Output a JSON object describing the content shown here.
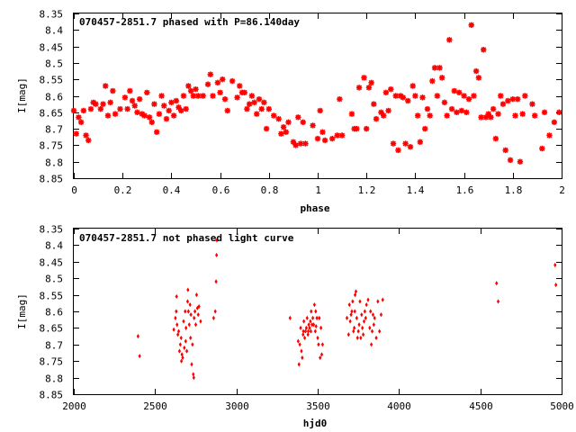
{
  "colors": {
    "marker": "#ff0000",
    "axis": "#000000",
    "background": "#ffffff"
  },
  "chart_data": [
    {
      "type": "scatter",
      "title": "070457-2851.7 phased with P=86.140day",
      "xlabel": "phase",
      "ylabel": "I[mag]",
      "xlim": [
        0,
        2
      ],
      "ylim": [
        8.85,
        8.35
      ],
      "y_inverted": true,
      "grid": false,
      "legend": "none",
      "marker": "asterisk",
      "xticks": [
        {
          "v": 0,
          "label": "0"
        },
        {
          "v": 0.2,
          "label": "0.2"
        },
        {
          "v": 0.4,
          "label": "0.4"
        },
        {
          "v": 0.6,
          "label": "0.6"
        },
        {
          "v": 0.8,
          "label": "0.8"
        },
        {
          "v": 1.0,
          "label": "1"
        },
        {
          "v": 1.2,
          "label": "1.2"
        },
        {
          "v": 1.4,
          "label": "1.4"
        },
        {
          "v": 1.6,
          "label": "1.6"
        },
        {
          "v": 1.8,
          "label": "1.8"
        },
        {
          "v": 2.0,
          "label": "2"
        }
      ],
      "yticks": [
        {
          "v": 8.35,
          "label": "8.35"
        },
        {
          "v": 8.4,
          "label": "8.4"
        },
        {
          "v": 8.45,
          "label": "8.45"
        },
        {
          "v": 8.5,
          "label": "8.5"
        },
        {
          "v": 8.55,
          "label": "8.55"
        },
        {
          "v": 8.6,
          "label": "8.6"
        },
        {
          "v": 8.65,
          "label": "8.65"
        },
        {
          "v": 8.7,
          "label": "8.7"
        },
        {
          "v": 8.75,
          "label": "8.75"
        },
        {
          "v": 8.8,
          "label": "8.8"
        },
        {
          "v": 8.85,
          "label": "8.85"
        }
      ],
      "points": [
        [
          0.0,
          8.645
        ],
        [
          0.01,
          8.715
        ],
        [
          0.02,
          8.665
        ],
        [
          0.03,
          8.68
        ],
        [
          0.04,
          8.645
        ],
        [
          0.05,
          8.72
        ],
        [
          0.06,
          8.735
        ],
        [
          0.07,
          8.64
        ],
        [
          0.08,
          8.62
        ],
        [
          0.09,
          8.625
        ],
        [
          0.11,
          8.64
        ],
        [
          0.12,
          8.625
        ],
        [
          0.13,
          8.57
        ],
        [
          0.14,
          8.66
        ],
        [
          0.15,
          8.62
        ],
        [
          0.16,
          8.585
        ],
        [
          0.17,
          8.655
        ],
        [
          0.19,
          8.64
        ],
        [
          0.21,
          8.605
        ],
        [
          0.22,
          8.64
        ],
        [
          0.23,
          8.585
        ],
        [
          0.24,
          8.615
        ],
        [
          0.25,
          8.63
        ],
        [
          0.26,
          8.65
        ],
        [
          0.27,
          8.61
        ],
        [
          0.28,
          8.655
        ],
        [
          0.29,
          8.66
        ],
        [
          0.3,
          8.59
        ],
        [
          0.31,
          8.665
        ],
        [
          0.32,
          8.68
        ],
        [
          0.33,
          8.625
        ],
        [
          0.34,
          8.71
        ],
        [
          0.35,
          8.655
        ],
        [
          0.36,
          8.6
        ],
        [
          0.37,
          8.63
        ],
        [
          0.38,
          8.67
        ],
        [
          0.39,
          8.645
        ],
        [
          0.4,
          8.62
        ],
        [
          0.41,
          8.66
        ],
        [
          0.42,
          8.615
        ],
        [
          0.43,
          8.635
        ],
        [
          0.44,
          8.645
        ],
        [
          0.45,
          8.6
        ],
        [
          0.46,
          8.64
        ],
        [
          0.47,
          8.57
        ],
        [
          0.48,
          8.585
        ],
        [
          0.49,
          8.6
        ],
        [
          0.5,
          8.58
        ],
        [
          0.51,
          8.6
        ],
        [
          0.53,
          8.6
        ],
        [
          0.55,
          8.565
        ],
        [
          0.56,
          8.535
        ],
        [
          0.57,
          8.6
        ],
        [
          0.59,
          8.56
        ],
        [
          0.6,
          8.59
        ],
        [
          0.61,
          8.55
        ],
        [
          0.62,
          8.61
        ],
        [
          0.63,
          8.645
        ],
        [
          0.65,
          8.555
        ],
        [
          0.67,
          8.605
        ],
        [
          0.68,
          8.57
        ],
        [
          0.69,
          8.59
        ],
        [
          0.7,
          8.59
        ],
        [
          0.71,
          8.64
        ],
        [
          0.72,
          8.625
        ],
        [
          0.73,
          8.6
        ],
        [
          0.74,
          8.62
        ],
        [
          0.75,
          8.655
        ],
        [
          0.76,
          8.61
        ],
        [
          0.77,
          8.64
        ],
        [
          0.78,
          8.62
        ],
        [
          0.79,
          8.7
        ],
        [
          0.8,
          8.64
        ],
        [
          0.82,
          8.66
        ],
        [
          0.84,
          8.67
        ],
        [
          0.85,
          8.715
        ],
        [
          0.86,
          8.695
        ],
        [
          0.87,
          8.71
        ],
        [
          0.88,
          8.68
        ],
        [
          0.9,
          8.74
        ],
        [
          0.91,
          8.75
        ],
        [
          0.92,
          8.665
        ],
        [
          0.93,
          8.745
        ],
        [
          0.94,
          8.68
        ],
        [
          0.95,
          8.745
        ],
        [
          0.98,
          8.69
        ],
        [
          1.0,
          8.73
        ],
        [
          1.01,
          8.645
        ],
        [
          1.02,
          8.71
        ],
        [
          1.03,
          8.735
        ],
        [
          1.06,
          8.73
        ],
        [
          1.08,
          8.72
        ],
        [
          1.09,
          8.61
        ],
        [
          1.1,
          8.72
        ],
        [
          1.14,
          8.655
        ],
        [
          1.15,
          8.7
        ],
        [
          1.16,
          8.7
        ],
        [
          1.17,
          8.575
        ],
        [
          1.19,
          8.545
        ],
        [
          1.2,
          8.7
        ],
        [
          1.21,
          8.575
        ],
        [
          1.22,
          8.56
        ],
        [
          1.23,
          8.625
        ],
        [
          1.24,
          8.67
        ],
        [
          1.26,
          8.65
        ],
        [
          1.27,
          8.66
        ],
        [
          1.28,
          8.59
        ],
        [
          1.29,
          8.645
        ],
        [
          1.3,
          8.58
        ],
        [
          1.31,
          8.745
        ],
        [
          1.32,
          8.6
        ],
        [
          1.33,
          8.765
        ],
        [
          1.34,
          8.6
        ],
        [
          1.35,
          8.605
        ],
        [
          1.36,
          8.745
        ],
        [
          1.37,
          8.615
        ],
        [
          1.38,
          8.755
        ],
        [
          1.39,
          8.57
        ],
        [
          1.4,
          8.6
        ],
        [
          1.41,
          8.66
        ],
        [
          1.42,
          8.74
        ],
        [
          1.43,
          8.605
        ],
        [
          1.44,
          8.7
        ],
        [
          1.45,
          8.64
        ],
        [
          1.46,
          8.66
        ],
        [
          1.47,
          8.555
        ],
        [
          1.48,
          8.515
        ],
        [
          1.49,
          8.6
        ],
        [
          1.5,
          8.515
        ],
        [
          1.51,
          8.545
        ],
        [
          1.52,
          8.62
        ],
        [
          1.53,
          8.66
        ],
        [
          1.54,
          8.43
        ],
        [
          1.55,
          8.64
        ],
        [
          1.56,
          8.585
        ],
        [
          1.57,
          8.65
        ],
        [
          1.58,
          8.59
        ],
        [
          1.59,
          8.645
        ],
        [
          1.6,
          8.6
        ],
        [
          1.61,
          8.65
        ],
        [
          1.62,
          8.61
        ],
        [
          1.63,
          8.385
        ],
        [
          1.64,
          8.6
        ],
        [
          1.65,
          8.525
        ],
        [
          1.66,
          8.545
        ],
        [
          1.67,
          8.665
        ],
        [
          1.68,
          8.46
        ],
        [
          1.69,
          8.665
        ],
        [
          1.7,
          8.655
        ],
        [
          1.71,
          8.665
        ],
        [
          1.72,
          8.64
        ],
        [
          1.73,
          8.73
        ],
        [
          1.74,
          8.655
        ],
        [
          1.75,
          8.6
        ],
        [
          1.76,
          8.625
        ],
        [
          1.77,
          8.765
        ],
        [
          1.78,
          8.615
        ],
        [
          1.79,
          8.795
        ],
        [
          1.8,
          8.61
        ],
        [
          1.81,
          8.66
        ],
        [
          1.82,
          8.61
        ],
        [
          1.83,
          8.8
        ],
        [
          1.84,
          8.655
        ],
        [
          1.85,
          8.6
        ],
        [
          1.88,
          8.625
        ],
        [
          1.89,
          8.66
        ],
        [
          1.92,
          8.76
        ],
        [
          1.93,
          8.65
        ],
        [
          1.95,
          8.72
        ],
        [
          1.97,
          8.68
        ],
        [
          1.99,
          8.65
        ]
      ]
    },
    {
      "type": "scatter",
      "title": "070457-2851.7 not phased light curve",
      "xlabel": "hjd0",
      "ylabel": "I[mag]",
      "xlim": [
        2000,
        5000
      ],
      "ylim": [
        8.85,
        8.35
      ],
      "y_inverted": true,
      "grid": false,
      "legend": "none",
      "marker": "diamond",
      "xticks": [
        {
          "v": 2000,
          "label": "2000"
        },
        {
          "v": 2500,
          "label": "2500"
        },
        {
          "v": 3000,
          "label": "3000"
        },
        {
          "v": 3500,
          "label": "3500"
        },
        {
          "v": 4000,
          "label": "4000"
        },
        {
          "v": 4500,
          "label": "4500"
        },
        {
          "v": 5000,
          "label": "5000"
        }
      ],
      "yticks": [
        {
          "v": 8.35,
          "label": "8.35"
        },
        {
          "v": 8.4,
          "label": "8.4"
        },
        {
          "v": 8.45,
          "label": "8.45"
        },
        {
          "v": 8.5,
          "label": "8.5"
        },
        {
          "v": 8.55,
          "label": "8.55"
        },
        {
          "v": 8.6,
          "label": "8.6"
        },
        {
          "v": 8.65,
          "label": "8.65"
        },
        {
          "v": 8.7,
          "label": "8.7"
        },
        {
          "v": 8.75,
          "label": "8.75"
        },
        {
          "v": 8.8,
          "label": "8.8"
        },
        {
          "v": 8.85,
          "label": "8.85"
        }
      ],
      "points": [
        [
          2395,
          8.675
        ],
        [
          2405,
          8.735
        ],
        [
          2615,
          8.655
        ],
        [
          2625,
          8.62
        ],
        [
          2630,
          8.6
        ],
        [
          2632,
          8.555
        ],
        [
          2635,
          8.64
        ],
        [
          2640,
          8.67
        ],
        [
          2645,
          8.66
        ],
        [
          2650,
          8.72
        ],
        [
          2655,
          8.7
        ],
        [
          2660,
          8.68
        ],
        [
          2662,
          8.75
        ],
        [
          2665,
          8.73
        ],
        [
          2670,
          8.74
        ],
        [
          2675,
          8.63
        ],
        [
          2680,
          8.71
        ],
        [
          2685,
          8.6
        ],
        [
          2688,
          8.69
        ],
        [
          2690,
          8.65
        ],
        [
          2695,
          8.72
        ],
        [
          2700,
          8.57
        ],
        [
          2702,
          8.535
        ],
        [
          2705,
          8.6
        ],
        [
          2710,
          8.64
        ],
        [
          2715,
          8.58
        ],
        [
          2718,
          8.68
        ],
        [
          2720,
          8.61
        ],
        [
          2725,
          8.76
        ],
        [
          2730,
          8.7
        ],
        [
          2735,
          8.79
        ],
        [
          2738,
          8.8
        ],
        [
          2740,
          8.62
        ],
        [
          2745,
          8.6
        ],
        [
          2750,
          8.64
        ],
        [
          2755,
          8.55
        ],
        [
          2760,
          8.59
        ],
        [
          2765,
          8.61
        ],
        [
          2770,
          8.585
        ],
        [
          2780,
          8.63
        ],
        [
          2860,
          8.62
        ],
        [
          2870,
          8.6
        ],
        [
          2875,
          8.51
        ],
        [
          2878,
          8.43
        ],
        [
          2880,
          8.385
        ],
        [
          3330,
          8.62
        ],
        [
          3380,
          8.69
        ],
        [
          3385,
          8.76
        ],
        [
          3390,
          8.7
        ],
        [
          3395,
          8.65
        ],
        [
          3400,
          8.72
        ],
        [
          3405,
          8.74
        ],
        [
          3410,
          8.67
        ],
        [
          3412,
          8.66
        ],
        [
          3415,
          8.63
        ],
        [
          3420,
          8.68
        ],
        [
          3425,
          8.66
        ],
        [
          3430,
          8.65
        ],
        [
          3435,
          8.62
        ],
        [
          3440,
          8.67
        ],
        [
          3442,
          8.66
        ],
        [
          3445,
          8.64
        ],
        [
          3450,
          8.65
        ],
        [
          3455,
          8.63
        ],
        [
          3458,
          8.66
        ],
        [
          3460,
          8.6
        ],
        [
          3465,
          8.64
        ],
        [
          3470,
          8.62
        ],
        [
          3475,
          8.64
        ],
        [
          3480,
          8.58
        ],
        [
          3485,
          8.66
        ],
        [
          3488,
          8.6
        ],
        [
          3490,
          8.645
        ],
        [
          3495,
          8.62
        ],
        [
          3500,
          8.68
        ],
        [
          3505,
          8.7
        ],
        [
          3510,
          8.62
        ],
        [
          3515,
          8.74
        ],
        [
          3520,
          8.65
        ],
        [
          3525,
          8.73
        ],
        [
          3530,
          8.7
        ],
        [
          3680,
          8.62
        ],
        [
          3690,
          8.67
        ],
        [
          3695,
          8.58
        ],
        [
          3700,
          8.63
        ],
        [
          3705,
          8.61
        ],
        [
          3710,
          8.6
        ],
        [
          3715,
          8.57
        ],
        [
          3720,
          8.66
        ],
        [
          3725,
          8.65
        ],
        [
          3728,
          8.6
        ],
        [
          3730,
          8.55
        ],
        [
          3735,
          8.54
        ],
        [
          3740,
          8.62
        ],
        [
          3745,
          8.68
        ],
        [
          3750,
          8.66
        ],
        [
          3755,
          8.64
        ],
        [
          3760,
          8.57
        ],
        [
          3765,
          8.68
        ],
        [
          3770,
          8.61
        ],
        [
          3775,
          8.65
        ],
        [
          3780,
          8.67
        ],
        [
          3785,
          8.63
        ],
        [
          3790,
          8.6
        ],
        [
          3795,
          8.62
        ],
        [
          3800,
          8.58
        ],
        [
          3810,
          8.565
        ],
        [
          3820,
          8.65
        ],
        [
          3825,
          8.6
        ],
        [
          3830,
          8.7
        ],
        [
          3835,
          8.66
        ],
        [
          3840,
          8.61
        ],
        [
          3845,
          8.64
        ],
        [
          3850,
          8.62
        ],
        [
          3860,
          8.68
        ],
        [
          3870,
          8.57
        ],
        [
          3880,
          8.66
        ],
        [
          3890,
          8.61
        ],
        [
          3900,
          8.565
        ],
        [
          4600,
          8.515
        ],
        [
          4610,
          8.57
        ],
        [
          4960,
          8.46
        ],
        [
          4965,
          8.52
        ]
      ]
    }
  ]
}
